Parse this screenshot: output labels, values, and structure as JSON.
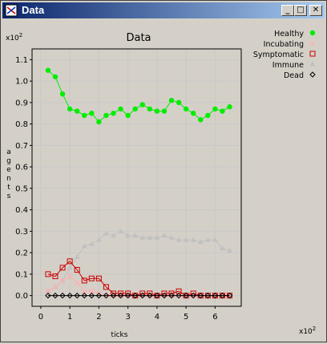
{
  "window": {
    "title": "Data",
    "minimize_label": "_",
    "maximize_label": "□",
    "close_label": "✕"
  },
  "chart_data": {
    "type": "line",
    "title": "Data",
    "xlabel": "ticks",
    "ylabel": "agents",
    "x_multiplier": "x10",
    "x_multiplier_exp": "2",
    "y_multiplier": "x10",
    "y_multiplier_exp": "2",
    "xlim": [
      -0.3,
      6.9
    ],
    "ylim": [
      -0.05,
      1.15
    ],
    "x_ticks": [
      "0",
      "1",
      "2",
      "3",
      "4",
      "5",
      "6"
    ],
    "y_ticks": [
      "0.0",
      "0.1",
      "0.2",
      "0.3",
      "0.4",
      "0.5",
      "0.6",
      "0.7",
      "0.8",
      "0.9",
      "1.0",
      "1.1"
    ],
    "grid": true,
    "legend_position": "right",
    "x": [
      0.25,
      0.5,
      0.75,
      1.0,
      1.25,
      1.5,
      1.75,
      2.0,
      2.25,
      2.5,
      2.75,
      3.0,
      3.25,
      3.5,
      3.75,
      4.0,
      4.25,
      4.5,
      4.75,
      5.0,
      5.25,
      5.5,
      5.75,
      6.0,
      6.25,
      6.5
    ],
    "series": [
      {
        "name": "Healthy",
        "color": "#00ee00",
        "marker": "circle",
        "line": true,
        "values": [
          1.05,
          1.02,
          0.94,
          0.87,
          0.86,
          0.84,
          0.85,
          0.81,
          0.84,
          0.85,
          0.87,
          0.84,
          0.87,
          0.89,
          0.87,
          0.86,
          0.86,
          0.91,
          0.9,
          0.87,
          0.85,
          0.82,
          0.84,
          0.87,
          0.86,
          0.88
        ]
      },
      {
        "name": "Incubating",
        "color": "#ffb0b0",
        "marker": "x",
        "line": true,
        "values": [
          0.02,
          0.04,
          0.07,
          0.09,
          0.06,
          0.02,
          0.02,
          0.01,
          0.0,
          0.0,
          0.0,
          0.0,
          0.0,
          0.0,
          0.0,
          0.0,
          0.0,
          0.0,
          0.0,
          0.0,
          0.0,
          0.0,
          0.0,
          0.0,
          0.0,
          0.0
        ]
      },
      {
        "name": "Symptomatic",
        "color": "#cc0000",
        "marker": "square",
        "line": true,
        "values": [
          0.1,
          0.09,
          0.13,
          0.16,
          0.12,
          0.07,
          0.08,
          0.08,
          0.04,
          0.01,
          0.01,
          0.01,
          0.0,
          0.01,
          0.01,
          0.0,
          0.01,
          0.01,
          0.02,
          0.0,
          0.01,
          0.0,
          0.0,
          0.0,
          0.0,
          0.0
        ]
      },
      {
        "name": "Immune",
        "color": "#c0c0c0",
        "marker": "triangle",
        "line": true,
        "values": [
          0.02,
          0.04,
          0.07,
          0.13,
          0.18,
          0.23,
          0.24,
          0.26,
          0.29,
          0.28,
          0.3,
          0.28,
          0.28,
          0.27,
          0.27,
          0.27,
          0.28,
          0.27,
          0.26,
          0.26,
          0.26,
          0.25,
          0.26,
          0.26,
          0.22,
          0.21
        ]
      },
      {
        "name": "Dead",
        "color": "#000000",
        "marker": "diamond",
        "line": true,
        "values": [
          0.0,
          0.0,
          0.0,
          0.0,
          0.0,
          0.0,
          0.0,
          0.0,
          0.0,
          0.0,
          0.0,
          0.0,
          0.0,
          0.0,
          0.0,
          0.0,
          0.0,
          0.0,
          0.0,
          0.0,
          0.0,
          0.0,
          0.0,
          0.0,
          0.0,
          0.0
        ]
      }
    ]
  }
}
